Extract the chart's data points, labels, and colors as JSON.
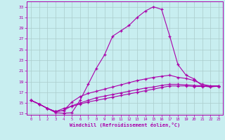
{
  "background_color": "#c8eef0",
  "grid_color": "#aacccc",
  "line_color": "#aa00aa",
  "xlabel": "Windchill (Refroidissement éolien,°C)",
  "x": [
    0,
    1,
    2,
    3,
    4,
    5,
    6,
    7,
    8,
    9,
    10,
    11,
    12,
    13,
    14,
    15,
    16,
    17,
    18,
    19,
    20,
    21,
    22,
    23
  ],
  "line1": [
    15.5,
    14.8,
    14.0,
    13.2,
    13.1,
    13.2,
    15.5,
    18.5,
    21.5,
    24.0,
    27.5,
    28.5,
    29.5,
    31.0,
    32.2,
    33.0,
    32.5,
    27.5,
    22.2,
    20.2,
    19.5,
    18.2,
    18.0,
    18.2
  ],
  "line2": [
    15.5,
    14.8,
    14.0,
    13.4,
    13.6,
    15.2,
    16.2,
    16.8,
    17.2,
    17.6,
    18.0,
    18.4,
    18.8,
    19.2,
    19.5,
    19.8,
    20.0,
    20.2,
    19.8,
    19.6,
    19.2,
    18.5,
    18.2,
    18.2
  ],
  "line3": [
    15.5,
    14.8,
    14.0,
    13.4,
    13.6,
    14.5,
    15.0,
    15.5,
    16.0,
    16.3,
    16.6,
    16.9,
    17.2,
    17.5,
    17.8,
    18.0,
    18.3,
    18.5,
    18.5,
    18.4,
    18.3,
    18.2,
    18.2,
    18.2
  ],
  "line4": [
    15.5,
    14.8,
    14.0,
    13.4,
    14.0,
    14.4,
    14.8,
    15.2,
    15.5,
    15.8,
    16.1,
    16.4,
    16.7,
    17.0,
    17.3,
    17.6,
    17.9,
    18.2,
    18.2,
    18.2,
    18.1,
    18.1,
    18.1,
    18.1
  ],
  "ylim_min": 12.8,
  "ylim_max": 34.0,
  "yticks": [
    13,
    15,
    17,
    19,
    21,
    23,
    25,
    27,
    29,
    31,
    33
  ],
  "xticks": [
    0,
    1,
    2,
    3,
    4,
    5,
    6,
    7,
    8,
    9,
    10,
    11,
    12,
    13,
    14,
    15,
    16,
    17,
    18,
    19,
    20,
    21,
    22,
    23
  ]
}
